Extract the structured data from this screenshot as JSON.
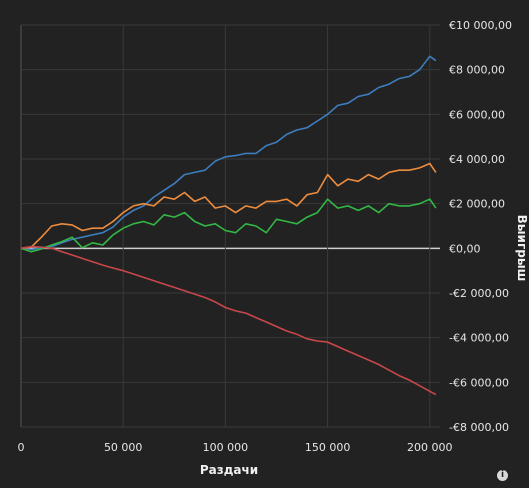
{
  "chart_data": {
    "type": "line",
    "xlabel": "Раздачи",
    "ylabel": "Выигрыш",
    "xlim": [
      0,
      205000
    ],
    "ylim": [
      -8000,
      10000
    ],
    "xticks": [
      0,
      50000,
      100000,
      150000,
      200000
    ],
    "xtick_labels": [
      "0",
      "50 000",
      "100 000",
      "150 000",
      "200 000"
    ],
    "yticks": [
      10000,
      8000,
      6000,
      4000,
      2000,
      0,
      -2000,
      -4000,
      -6000,
      -8000
    ],
    "ytick_labels": [
      "€10 000,00",
      "€8 000,00",
      "€6 000,00",
      "€4 000,00",
      "€2 000,00",
      "€0,00",
      "-€2 000,00",
      "-€4 000,00",
      "-€6 000,00",
      "-€8 000,00"
    ],
    "grid": true,
    "series": [
      {
        "color": "#3d7ebf",
        "x": [
          0,
          5000,
          10000,
          15000,
          20000,
          25000,
          30000,
          35000,
          40000,
          45000,
          50000,
          55000,
          60000,
          65000,
          70000,
          75000,
          80000,
          85000,
          90000,
          95000,
          100000,
          105000,
          110000,
          115000,
          120000,
          125000,
          130000,
          135000,
          140000,
          145000,
          150000,
          155000,
          160000,
          165000,
          170000,
          175000,
          180000,
          185000,
          190000,
          195000,
          200000,
          203000
        ],
        "y": [
          0,
          -50,
          20,
          80,
          250,
          400,
          500,
          600,
          700,
          950,
          1400,
          1700,
          1900,
          2300,
          2600,
          2900,
          3300,
          3400,
          3500,
          3900,
          4100,
          4150,
          4250,
          4250,
          4600,
          4750,
          5100,
          5300,
          5400,
          5700,
          6000,
          6400,
          6500,
          6800,
          6900,
          7200,
          7350,
          7600,
          7700,
          8000,
          8600,
          8400
        ]
      },
      {
        "color": "#ee8c3e",
        "x": [
          0,
          5000,
          10000,
          15000,
          20000,
          25000,
          30000,
          35000,
          40000,
          45000,
          50000,
          55000,
          60000,
          65000,
          70000,
          75000,
          80000,
          85000,
          90000,
          95000,
          100000,
          105000,
          110000,
          115000,
          120000,
          125000,
          130000,
          135000,
          140000,
          145000,
          150000,
          155000,
          160000,
          165000,
          170000,
          175000,
          180000,
          185000,
          190000,
          195000,
          200000,
          203000
        ],
        "y": [
          0,
          50,
          500,
          1000,
          1100,
          1050,
          800,
          900,
          900,
          1200,
          1600,
          1900,
          2000,
          1900,
          2300,
          2200,
          2500,
          2100,
          2300,
          1800,
          1900,
          1600,
          1900,
          1800,
          2100,
          2100,
          2200,
          1900,
          2400,
          2500,
          3300,
          2800,
          3100,
          3000,
          3300,
          3100,
          3400,
          3500,
          3500,
          3600,
          3800,
          3400
        ]
      },
      {
        "color": "#33b845",
        "x": [
          0,
          5000,
          10000,
          15000,
          20000,
          25000,
          30000,
          35000,
          40000,
          45000,
          50000,
          55000,
          60000,
          65000,
          70000,
          75000,
          80000,
          85000,
          90000,
          95000,
          100000,
          105000,
          110000,
          115000,
          120000,
          125000,
          130000,
          135000,
          140000,
          145000,
          150000,
          155000,
          160000,
          165000,
          170000,
          175000,
          180000,
          185000,
          190000,
          195000,
          200000,
          203000
        ],
        "y": [
          0,
          -150,
          -30,
          150,
          300,
          500,
          30,
          250,
          150,
          600,
          900,
          1100,
          1200,
          1050,
          1500,
          1400,
          1600,
          1200,
          1000,
          1100,
          800,
          700,
          1100,
          1000,
          700,
          1300,
          1200,
          1100,
          1400,
          1600,
          2200,
          1800,
          1900,
          1700,
          1900,
          1600,
          2000,
          1900,
          1900,
          2000,
          2200,
          1800
        ]
      },
      {
        "color": "#c8474b",
        "x": [
          0,
          5000,
          10000,
          15000,
          20000,
          25000,
          30000,
          35000,
          40000,
          45000,
          50000,
          55000,
          60000,
          65000,
          70000,
          75000,
          80000,
          85000,
          90000,
          95000,
          100000,
          105000,
          110000,
          115000,
          120000,
          125000,
          130000,
          135000,
          140000,
          145000,
          150000,
          155000,
          160000,
          165000,
          170000,
          175000,
          180000,
          185000,
          190000,
          195000,
          200000,
          203000
        ],
        "y": [
          0,
          80,
          50,
          0,
          -150,
          -300,
          -450,
          -600,
          -750,
          -880,
          -1000,
          -1150,
          -1300,
          -1450,
          -1600,
          -1750,
          -1900,
          -2050,
          -2200,
          -2400,
          -2650,
          -2800,
          -2900,
          -3100,
          -3300,
          -3500,
          -3700,
          -3850,
          -4050,
          -4150,
          -4200,
          -4400,
          -4600,
          -4800,
          -5000,
          -5200,
          -5450,
          -5700,
          -5900,
          -6150,
          -6400,
          -6550
        ]
      }
    ]
  }
}
